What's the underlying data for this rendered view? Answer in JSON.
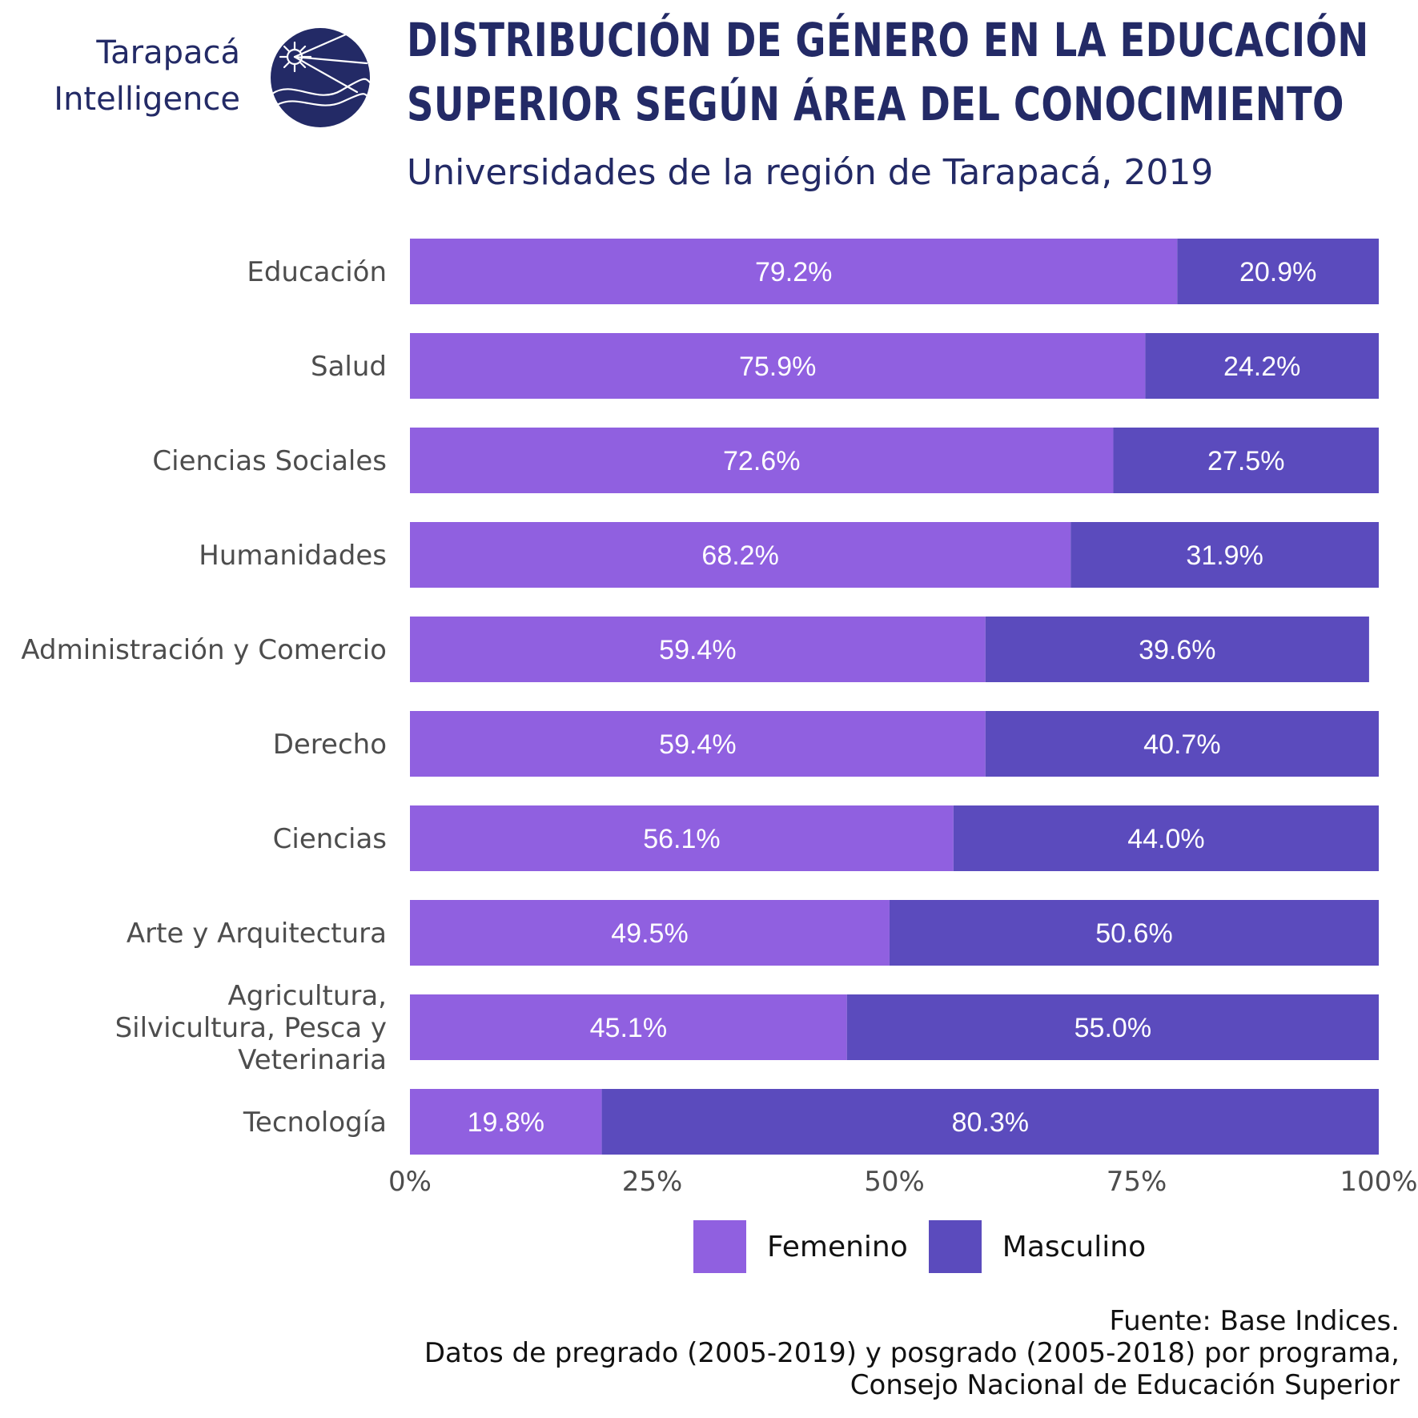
{
  "logo": {
    "line1": "Tarapacá",
    "line2": "Intelligence"
  },
  "header": {
    "title_line1": "DISTRIBUCIÓN DE GÉNERO EN LA EDUCACIÓN",
    "title_line2": "SUPERIOR SEGÚN ÁREA DEL CONOCIMIENTO",
    "subtitle": "Universidades de la región de Tarapacá, 2019"
  },
  "colors": {
    "femenino": "#9060e0",
    "masculino": "#5b4bbd",
    "navy": "#232a66",
    "axis_text": "#4d4d4d"
  },
  "chart_data": {
    "type": "bar",
    "orientation": "horizontal",
    "stacked": true,
    "categories": [
      "Educación",
      "Salud",
      "Ciencias Sociales",
      "Humanidades",
      "Administración y Comercio",
      "Derecho",
      "Ciencias",
      "Arte y Arquitectura",
      "Agricultura, Silvicultura, Pesca y Veterinaria",
      "Tecnología"
    ],
    "category_label_lines": [
      [
        "Educación"
      ],
      [
        "Salud"
      ],
      [
        "Ciencias Sociales"
      ],
      [
        "Humanidades"
      ],
      [
        "Administración y Comercio"
      ],
      [
        "Derecho"
      ],
      [
        "Ciencias"
      ],
      [
        "Arte y Arquitectura"
      ],
      [
        "Agricultura,",
        "Silvicultura, Pesca y",
        "Veterinaria"
      ],
      [
        "Tecnología"
      ]
    ],
    "series": [
      {
        "name": "Femenino",
        "values": [
          79.2,
          75.9,
          72.6,
          68.2,
          59.4,
          59.4,
          56.1,
          49.5,
          45.1,
          19.8
        ],
        "labels": [
          "79.2%",
          "75.9%",
          "72.6%",
          "68.2%",
          "59.4%",
          "59.4%",
          "56.1%",
          "49.5%",
          "45.1%",
          "19.8%"
        ]
      },
      {
        "name": "Masculino",
        "values": [
          20.9,
          24.2,
          27.5,
          31.9,
          39.6,
          40.7,
          44.0,
          50.6,
          55.0,
          80.3
        ],
        "labels": [
          "20.9%",
          "24.2%",
          "27.5%",
          "31.9%",
          "39.6%",
          "40.7%",
          "44.0%",
          "50.6%",
          "55.0%",
          "80.3%"
        ]
      }
    ],
    "xlim": [
      0,
      100
    ],
    "x_ticks": [
      0,
      25,
      50,
      75,
      100
    ],
    "x_tick_labels": [
      "0%",
      "25%",
      "50%",
      "75%",
      "100%"
    ],
    "xlabel": "",
    "ylabel": "",
    "grid": false,
    "legend_position": "bottom"
  },
  "legend": {
    "femenino": "Femenino",
    "masculino": "Masculino"
  },
  "source": {
    "line1": "Fuente: Base Indices.",
    "line2": "Datos de pregrado (2005-2019) y posgrado (2005-2018) por programa,",
    "line3": "Consejo Nacional de Educación Superior"
  }
}
